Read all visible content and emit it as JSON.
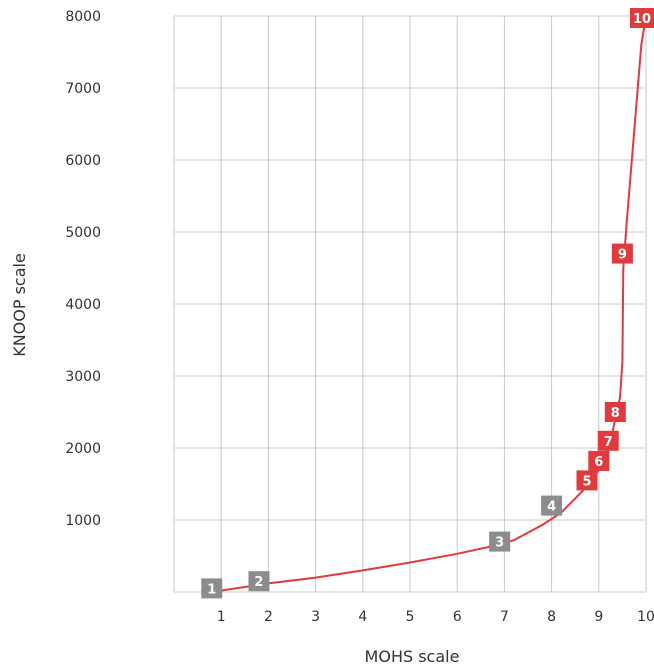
{
  "chart_data": {
    "type": "line",
    "xlabel": "MOHS scale",
    "ylabel": "KNOOP scale",
    "xlim": [
      0,
      10
    ],
    "ylim": [
      0,
      8000
    ],
    "x_ticks": [
      1,
      2,
      3,
      4,
      5,
      6,
      7,
      8,
      9,
      10
    ],
    "y_ticks": [
      1000,
      2000,
      3000,
      4000,
      5000,
      6000,
      7000,
      8000
    ],
    "grid": true,
    "curve": {
      "color": "#e03a3e",
      "x": [
        0.9,
        1.3,
        2.0,
        3.0,
        4.0,
        5.0,
        6.0,
        6.7,
        7.2,
        7.8,
        8.2,
        8.5,
        8.8,
        9.0,
        9.15,
        9.25,
        9.35,
        9.45,
        9.5,
        9.52,
        9.6,
        9.75,
        9.9,
        10.0
      ],
      "y": [
        10,
        50,
        120,
        200,
        300,
        410,
        530,
        630,
        720,
        930,
        1100,
        1300,
        1500,
        1700,
        1900,
        2100,
        2400,
        2700,
        3200,
        4500,
        5200,
        6400,
        7600,
        8000
      ]
    },
    "points": [
      {
        "label": "1",
        "x": 0.8,
        "y": 50,
        "color": "#8c8c8c"
      },
      {
        "label": "2",
        "x": 1.8,
        "y": 150,
        "color": "#8c8c8c"
      },
      {
        "label": "3",
        "x": 6.9,
        "y": 700,
        "color": "#8c8c8c"
      },
      {
        "label": "4",
        "x": 8.0,
        "y": 1200,
        "color": "#8c8c8c"
      },
      {
        "label": "5",
        "x": 8.75,
        "y": 1550,
        "color": "#e03a3e"
      },
      {
        "label": "6",
        "x": 9.0,
        "y": 1820,
        "color": "#e03a3e"
      },
      {
        "label": "7",
        "x": 9.2,
        "y": 2100,
        "color": "#e03a3e"
      },
      {
        "label": "8",
        "x": 9.35,
        "y": 2500,
        "color": "#e03a3e"
      },
      {
        "label": "9",
        "x": 9.5,
        "y": 4700,
        "color": "#e03a3e"
      },
      {
        "label": "10",
        "x": 10.0,
        "y": 8000,
        "color": "#e03a3e"
      }
    ]
  }
}
